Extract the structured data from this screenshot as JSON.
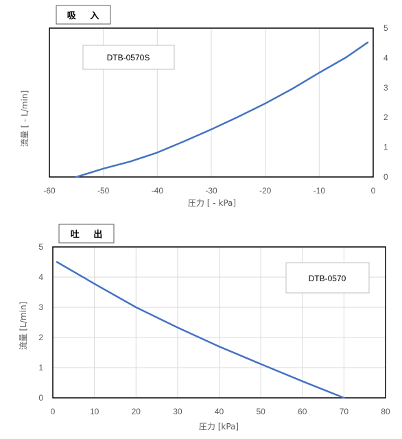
{
  "chart_data": [
    {
      "type": "line",
      "title": "吸 入",
      "legend_label": "DTB-0570S",
      "xlabel": "圧力 [ - kPa]",
      "ylabel": "流量 [ - L/min]",
      "xlim": [
        -60,
        0
      ],
      "ylim": [
        0,
        5
      ],
      "x_ticks": [
        "-60",
        "-50",
        "-40",
        "-30",
        "-20",
        "-10",
        "0"
      ],
      "y_ticks": [
        "0",
        "1",
        "2",
        "3",
        "4",
        "5"
      ],
      "y_axis_side": "right",
      "grid": "vertical",
      "line_color": "#4472c4",
      "series": [
        {
          "x": [
            -55,
            -50,
            -45,
            -40,
            -35,
            -30,
            -25,
            -20,
            -15,
            -10,
            -5,
            -1
          ],
          "y": [
            0,
            0.28,
            0.52,
            0.82,
            1.2,
            1.6,
            2.02,
            2.47,
            2.96,
            3.5,
            4.02,
            4.52
          ]
        }
      ]
    },
    {
      "type": "line",
      "title": "吐 出",
      "legend_label": "DTB-0570",
      "xlabel": "圧力 [kPa]",
      "ylabel": "流量 [L/min]",
      "xlim": [
        0,
        80
      ],
      "ylim": [
        0,
        5
      ],
      "x_ticks": [
        "0",
        "10",
        "20",
        "30",
        "40",
        "50",
        "60",
        "70",
        "80"
      ],
      "y_ticks": [
        "0",
        "1",
        "2",
        "3",
        "4",
        "5"
      ],
      "y_axis_side": "left",
      "grid": "both",
      "line_color": "#4472c4",
      "series": [
        {
          "x": [
            1,
            10,
            20,
            30,
            40,
            50,
            60,
            70
          ],
          "y": [
            4.5,
            3.78,
            3.0,
            2.33,
            1.7,
            1.12,
            0.55,
            0
          ]
        }
      ]
    }
  ]
}
